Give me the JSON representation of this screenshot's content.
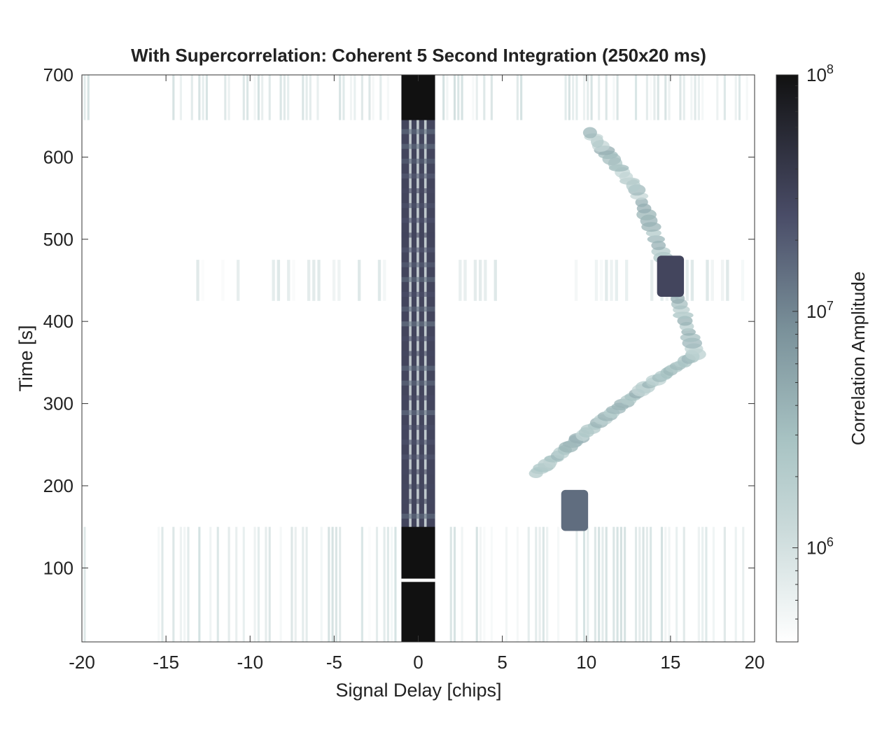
{
  "chart_data": {
    "type": "heatmap",
    "title": "With Supercorrelation: Coherent 5 Second Integration (250x20 ms)",
    "xlabel": "Signal Delay [chips]",
    "ylabel": "Time [s]",
    "xlim": [
      -20,
      20
    ],
    "ylim": [
      10,
      700
    ],
    "x_ticks": [
      -20,
      -15,
      -10,
      -5,
      0,
      5,
      10,
      15,
      20
    ],
    "x_tick_labels": [
      "-20",
      "-15",
      "-10",
      "-5",
      "0",
      "5",
      "10",
      "15",
      "20"
    ],
    "y_ticks": [
      100,
      200,
      300,
      400,
      500,
      600,
      700
    ],
    "y_tick_labels": [
      "100",
      "200",
      "300",
      "400",
      "500",
      "600",
      "700"
    ],
    "grid": false,
    "colorbar": {
      "label": "Correlation Amplitude",
      "scale": "log",
      "range": [
        400000,
        100000000
      ],
      "ticks": [
        {
          "base": "10",
          "exp": "6",
          "value": 1000000
        },
        {
          "base": "10",
          "exp": "7",
          "value": 10000000
        },
        {
          "base": "10",
          "exp": "8",
          "value": 100000000
        }
      ],
      "colors": [
        "#ffffff",
        "#a9c4c4",
        "#6e8691",
        "#4a4d68",
        "#111111"
      ]
    },
    "features": [
      {
        "name": "zero-delay peak",
        "delay_range": [
          -1,
          1
        ],
        "time_range": [
          10,
          700
        ],
        "amplitude": 30000000
      },
      {
        "name": "strong zero-delay block (low)",
        "delay_range": [
          -1,
          1
        ],
        "time_range": [
          10,
          150
        ],
        "amplitude": 100000000
      },
      {
        "name": "strong zero-delay block (high)",
        "delay_range": [
          -1,
          1
        ],
        "time_range": [
          645,
          700
        ],
        "amplitude": 100000000
      },
      {
        "name": "moving reflection",
        "delay_path": [
          [
            7,
            215
          ],
          [
            10,
            265
          ],
          [
            13.5,
            320
          ],
          [
            16.5,
            360
          ],
          [
            15,
            455
          ],
          [
            13,
            560
          ],
          [
            10,
            635
          ]
        ],
        "amplitude": 2000000
      },
      {
        "name": "reflection peak",
        "delay": 15,
        "time": 455,
        "amplitude": 30000000
      },
      {
        "name": "reflection patch",
        "delay": 9.3,
        "time": 170,
        "amplitude": 15000000
      }
    ]
  }
}
